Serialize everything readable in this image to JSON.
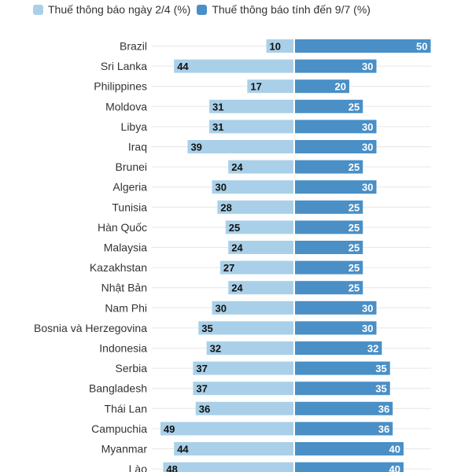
{
  "legend": {
    "series_2_4": "Thuế thông báo ngày 2/4 (%)",
    "series_9_7": "Thuế thông báo tính đến 9/7 (%)"
  },
  "colors": {
    "series_2_4": "#a9d0e8",
    "series_9_7": "#4a8fc6",
    "grid": "#e6e6e6",
    "label_dark": "#111111",
    "label_light": "#ffffff",
    "category": "#333333"
  },
  "chart_data": {
    "type": "bar",
    "orientation": "horizontal-diverging",
    "categories": [
      "Brazil",
      "Sri Lanka",
      "Philippines",
      "Moldova",
      "Libya",
      "Iraq",
      "Brunei",
      "Algeria",
      "Tunisia",
      "Hàn Quốc",
      "Malaysia",
      "Kazakhstan",
      "Nhật Bản",
      "Nam Phi",
      "Bosnia và Herzegovina",
      "Indonesia",
      "Serbia",
      "Bangladesh",
      "Thái Lan",
      "Campuchia",
      "Myanmar",
      "Lào"
    ],
    "series": [
      {
        "name": "Thuế thông báo ngày 2/4 (%)",
        "key": "series_2_4",
        "direction": "left",
        "values": [
          10,
          44,
          17,
          31,
          31,
          39,
          24,
          30,
          28,
          25,
          24,
          27,
          24,
          30,
          35,
          32,
          37,
          37,
          36,
          49,
          44,
          48
        ]
      },
      {
        "name": "Thuế thông báo tính đến 9/7 (%)",
        "key": "series_9_7",
        "direction": "right",
        "values": [
          50,
          30,
          20,
          25,
          30,
          30,
          25,
          30,
          25,
          25,
          25,
          25,
          25,
          30,
          30,
          32,
          35,
          35,
          36,
          36,
          40,
          40
        ]
      }
    ],
    "xlim": [
      0,
      50
    ],
    "grid": true,
    "legend_position": "top-left"
  }
}
